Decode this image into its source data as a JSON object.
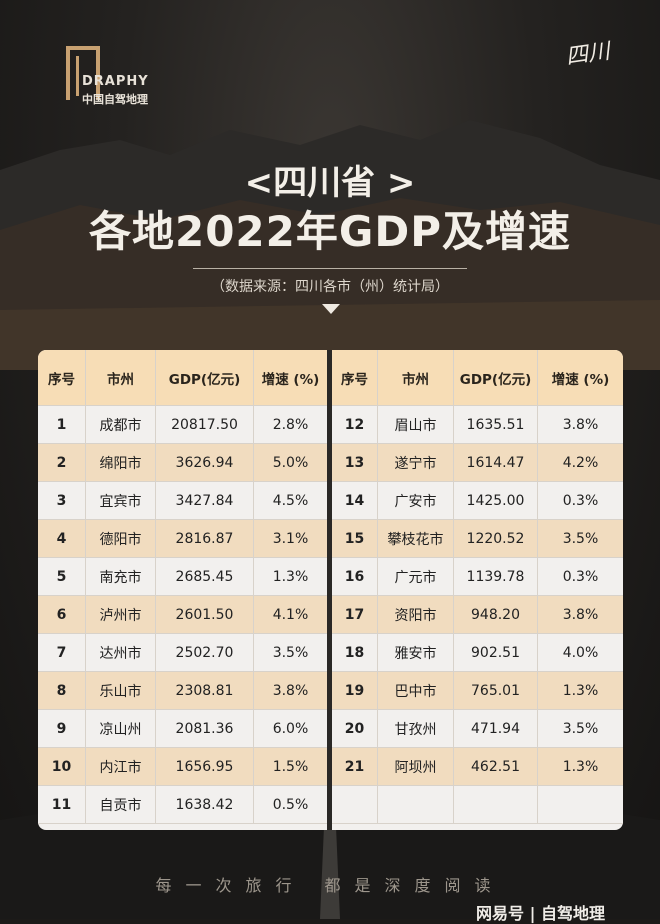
{
  "logo": {
    "en": "DRAPHY",
    "cn": "中国自驾地理"
  },
  "stamp": "四川",
  "title": {
    "line1": "<四川省 >",
    "line2": "各地2022年GDP及增速"
  },
  "source": "（数据来源：四川各市（州）统计局）",
  "table": {
    "headers": [
      "序号",
      "市州",
      "GDP(亿元)",
      "增速 (%)"
    ],
    "left": [
      [
        "1",
        "成都市",
        "20817.50",
        "2.8%"
      ],
      [
        "2",
        "绵阳市",
        "3626.94",
        "5.0%"
      ],
      [
        "3",
        "宜宾市",
        "3427.84",
        "4.5%"
      ],
      [
        "4",
        "德阳市",
        "2816.87",
        "3.1%"
      ],
      [
        "5",
        "南充市",
        "2685.45",
        "1.3%"
      ],
      [
        "6",
        "泸州市",
        "2601.50",
        "4.1%"
      ],
      [
        "7",
        "达州市",
        "2502.70",
        "3.5%"
      ],
      [
        "8",
        "乐山市",
        "2308.81",
        "3.8%"
      ],
      [
        "9",
        "凉山州",
        "2081.36",
        "6.0%"
      ],
      [
        "10",
        "内江市",
        "1656.95",
        "1.5%"
      ],
      [
        "11",
        "自贡市",
        "1638.42",
        "0.5%"
      ]
    ],
    "right": [
      [
        "12",
        "眉山市",
        "1635.51",
        "3.8%"
      ],
      [
        "13",
        "遂宁市",
        "1614.47",
        "4.2%"
      ],
      [
        "14",
        "广安市",
        "1425.00",
        "0.3%"
      ],
      [
        "15",
        "攀枝花市",
        "1220.52",
        "3.5%"
      ],
      [
        "16",
        "广元市",
        "1139.78",
        "0.3%"
      ],
      [
        "17",
        "资阳市",
        "948.20",
        "3.8%"
      ],
      [
        "18",
        "雅安市",
        "902.51",
        "4.0%"
      ],
      [
        "19",
        "巴中市",
        "765.01",
        "1.3%"
      ],
      [
        "20",
        "甘孜州",
        "471.94",
        "3.5%"
      ],
      [
        "21",
        "阿坝州",
        "462.51",
        "1.3%"
      ]
    ]
  },
  "footer": "每一次旅行 都是深度阅读",
  "brand": "网易号 | 自驾地理"
}
